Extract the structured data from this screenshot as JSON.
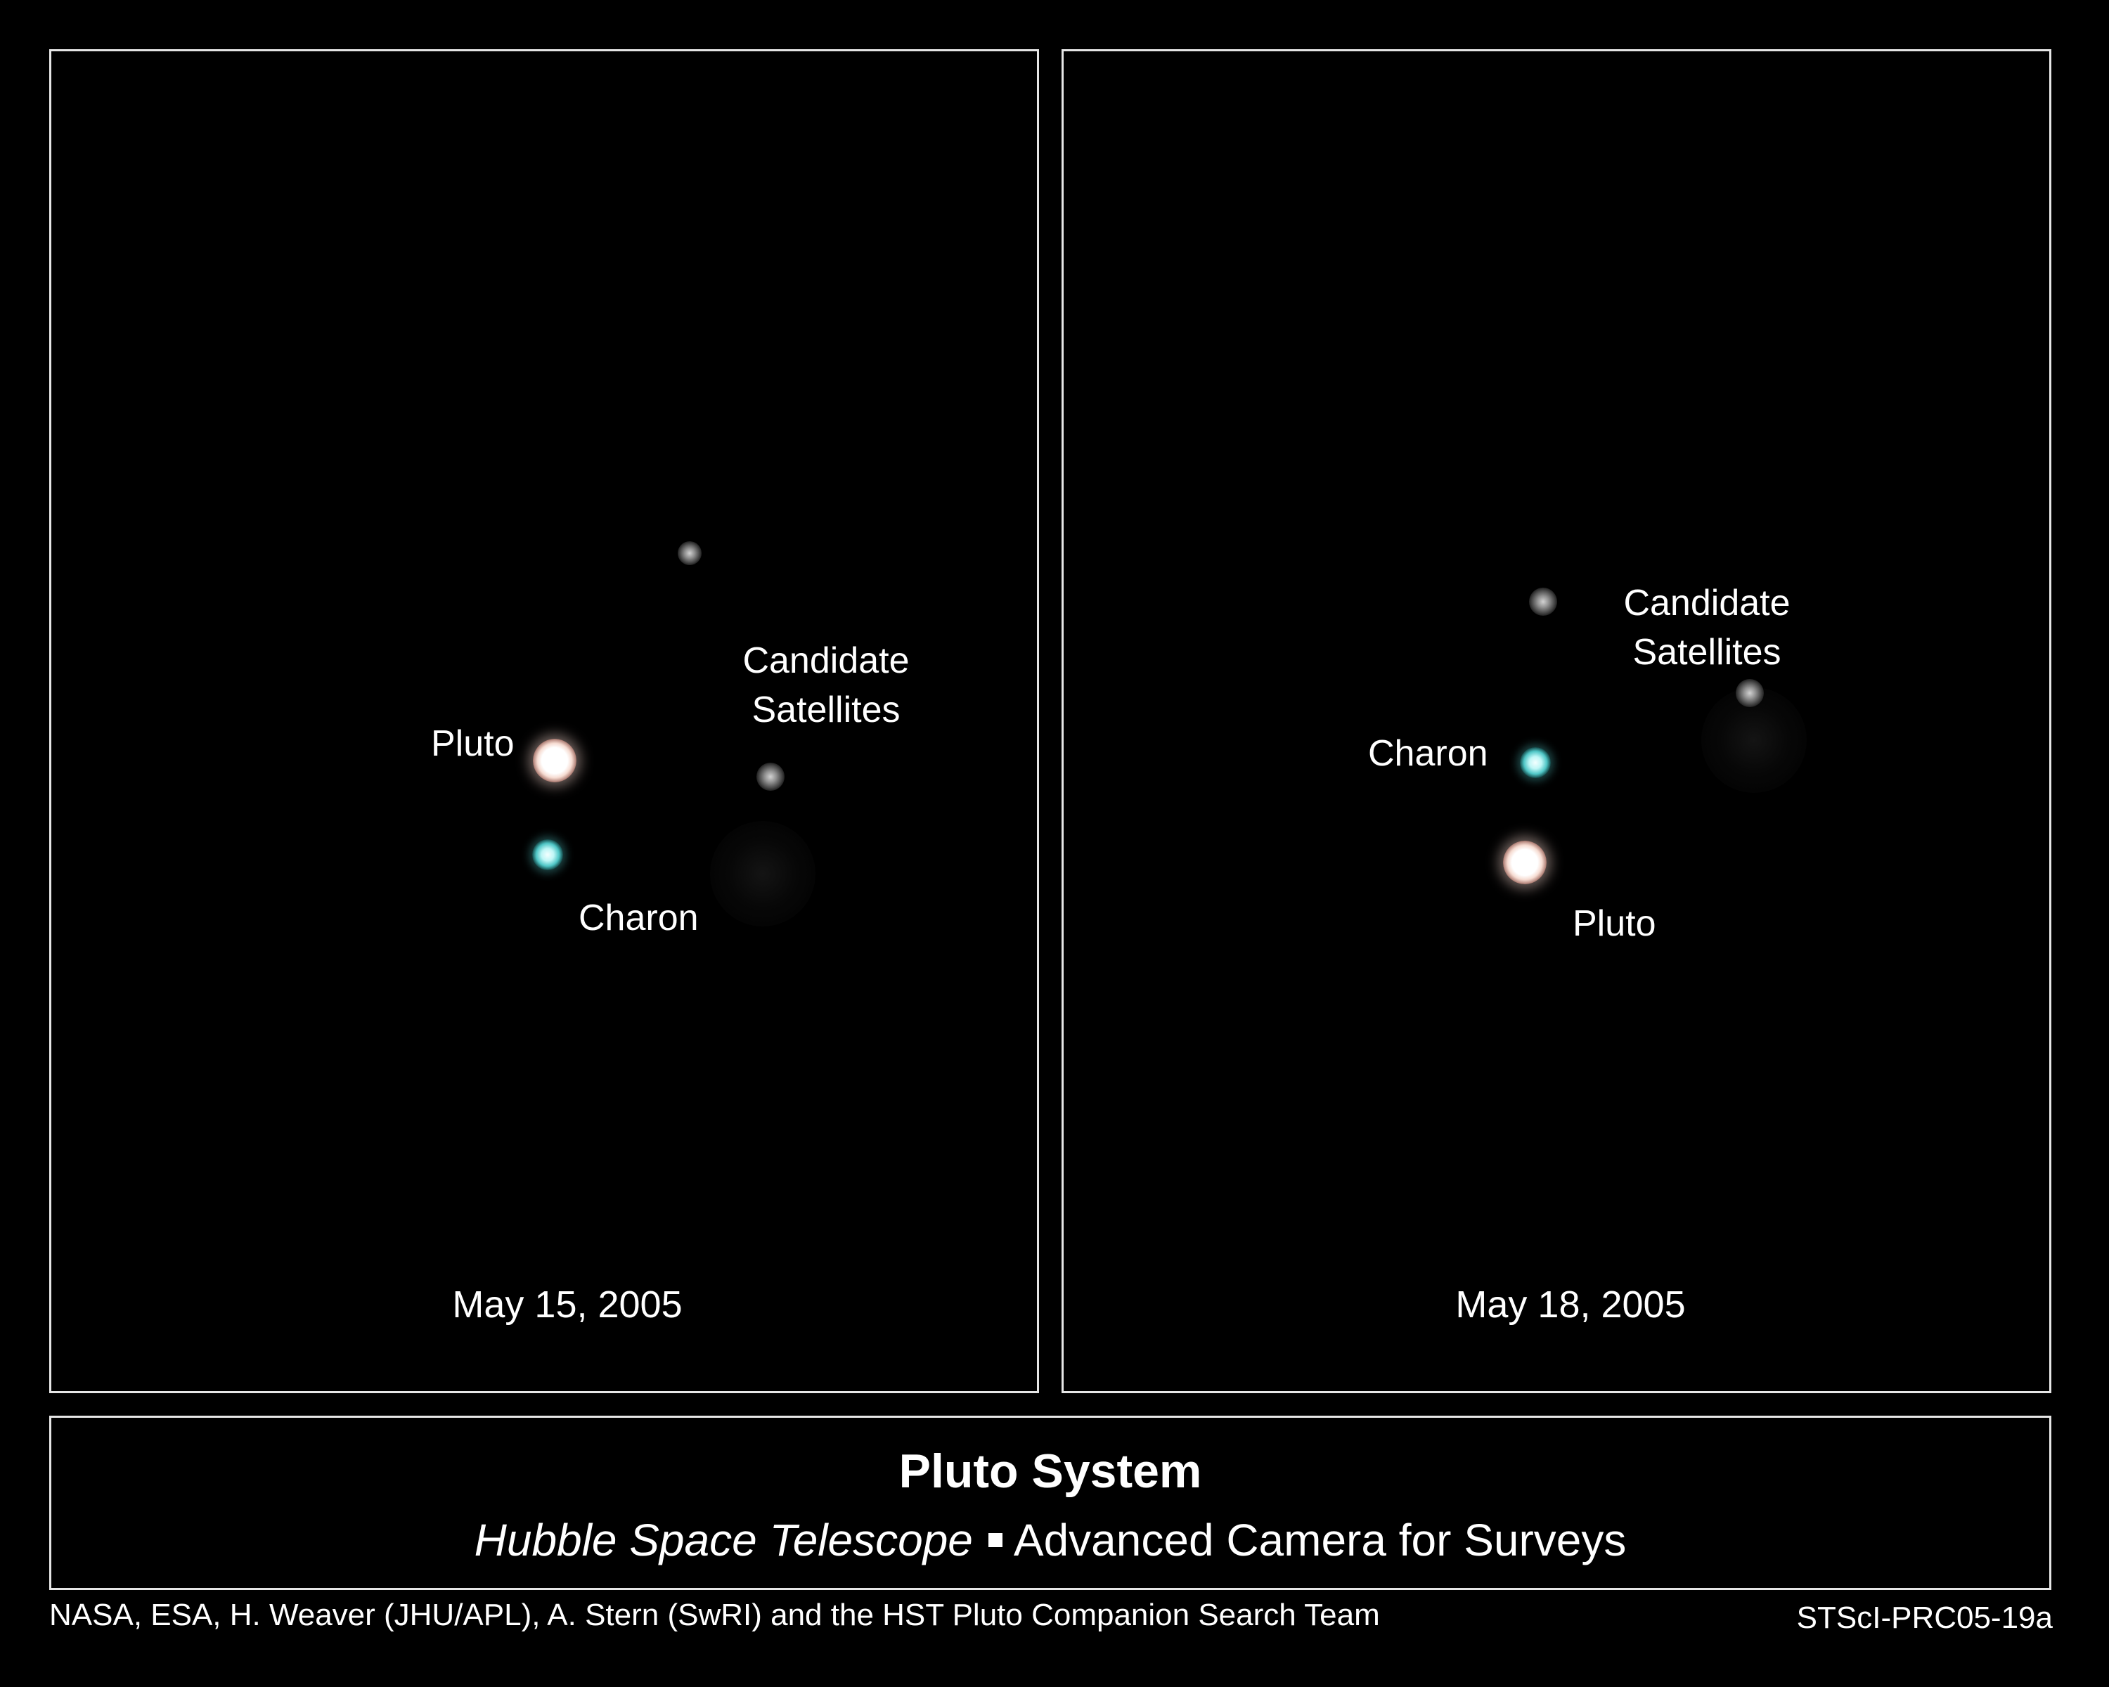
{
  "panels": {
    "left": {
      "date": "May 15, 2005",
      "labels": {
        "pluto": "Pluto",
        "charon": "Charon",
        "satellites_line1": "Candidate",
        "satellites_line2": "Satellites"
      }
    },
    "right": {
      "date": "May 18, 2005",
      "labels": {
        "pluto": "Pluto",
        "charon": "Charon",
        "satellites_line1": "Candidate",
        "satellites_line2": "Satellites"
      }
    }
  },
  "title_box": {
    "title": "Pluto System",
    "telescope": "Hubble Space Telescope",
    "instrument": "Advanced Camera for Surveys"
  },
  "credit": "NASA, ESA, H. Weaver (JHU/APL), A. Stern (SwRI) and the HST Pluto Companion Search Team",
  "image_id": "STScI-PRC05-19a",
  "colors": {
    "background": "#000000",
    "frame": "#e6e6e6",
    "text": "#ffffff",
    "charon": "#4fc6c6",
    "pluto_halo": "#b88a80"
  }
}
